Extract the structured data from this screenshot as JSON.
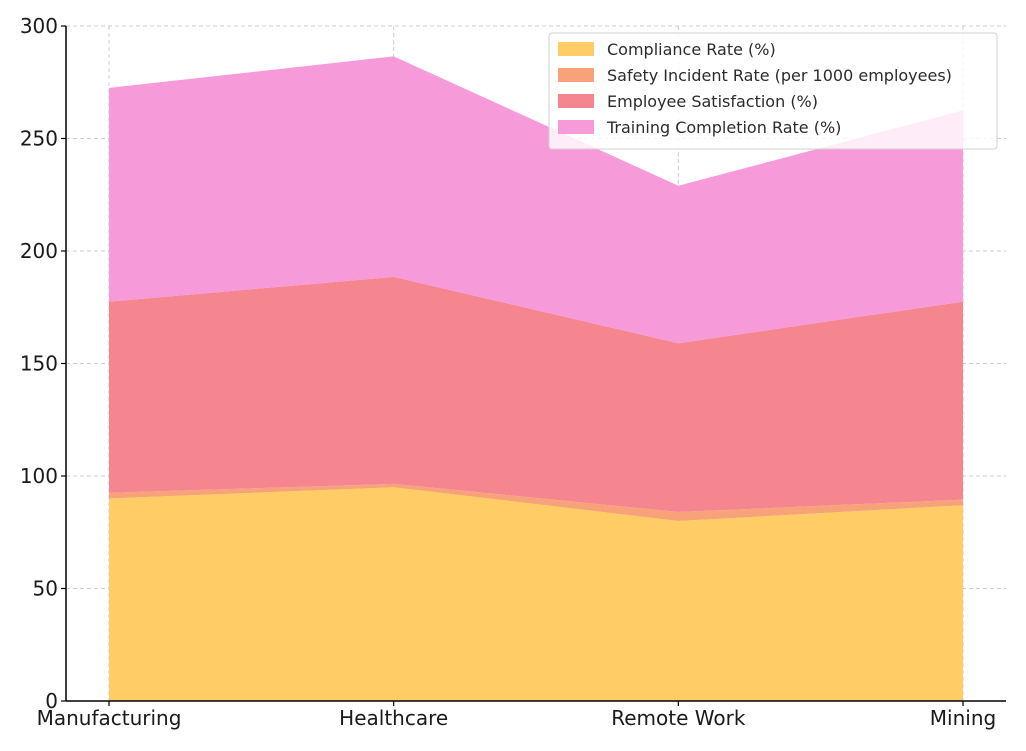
{
  "chart_data": {
    "type": "area",
    "stacked": true,
    "title": "",
    "xlabel": "",
    "ylabel": "",
    "categories": [
      "Manufacturing",
      "Healthcare",
      "Remote Work",
      "Mining"
    ],
    "ylim": [
      0,
      300
    ],
    "yticks": [
      0,
      50,
      100,
      150,
      200,
      250,
      300
    ],
    "grid": true,
    "legend_position": "top-right",
    "series": [
      {
        "name": "Compliance Rate (%)",
        "color": "#FFCC66",
        "values": [
          90,
          95,
          80,
          87
        ]
      },
      {
        "name": "Safety Incident Rate (per 1000 employees)",
        "color": "#F8A27A",
        "values": [
          2.5,
          1.5,
          4,
          2.5
        ]
      },
      {
        "name": "Employee Satisfaction (%)",
        "color": "#F5868F",
        "values": [
          85,
          92,
          75,
          88
        ]
      },
      {
        "name": "Training Completion Rate (%)",
        "color": "#F79ADA",
        "values": [
          95,
          98,
          70,
          85
        ]
      }
    ]
  }
}
